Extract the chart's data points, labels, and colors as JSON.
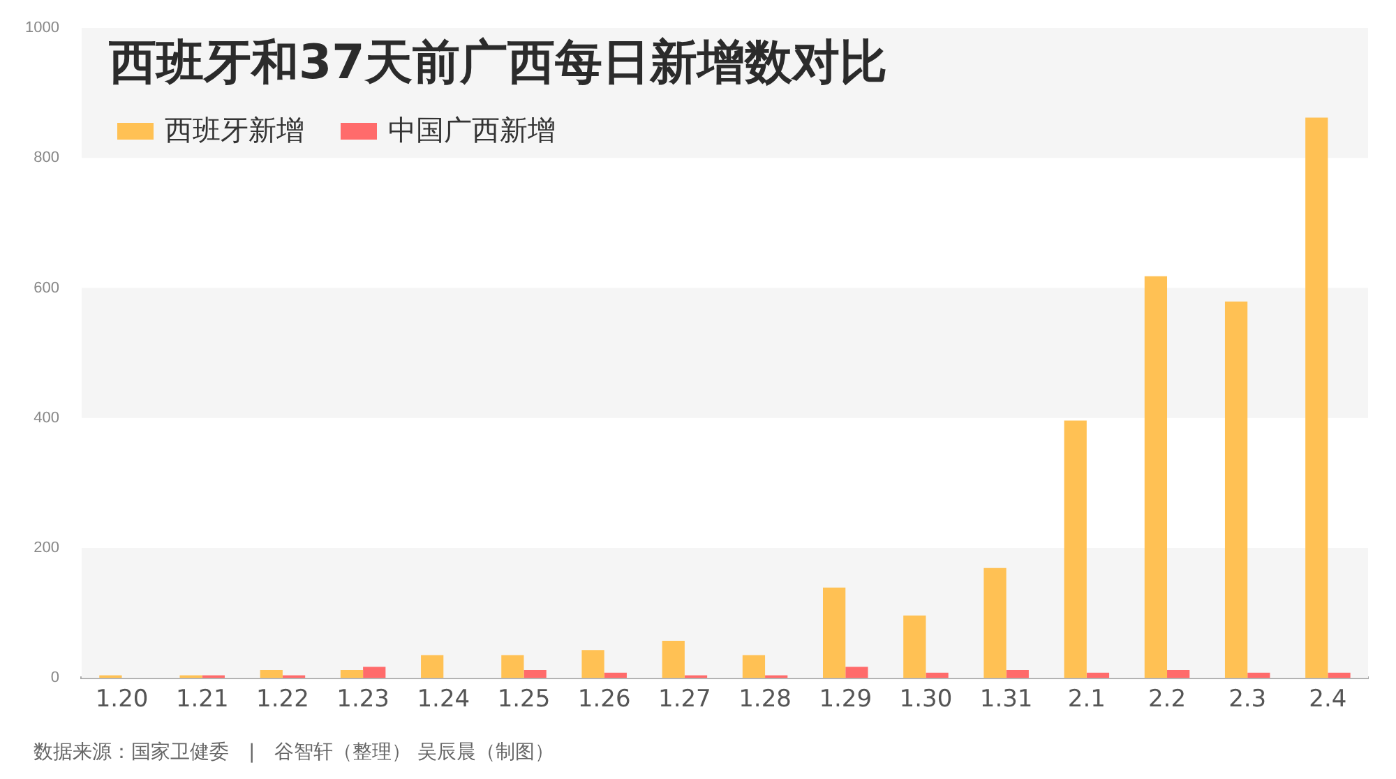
{
  "chart_data": {
    "type": "bar",
    "title": "西班牙和37天前广西每日新增数对比",
    "categories": [
      "1.20",
      "1.21",
      "1.22",
      "1.23",
      "1.24",
      "1.25",
      "1.26",
      "1.27",
      "1.28",
      "1.29",
      "1.30",
      "1.31",
      "2.1",
      "2.2",
      "2.3",
      "2.4"
    ],
    "series": [
      {
        "name": "西班牙新增",
        "color": "#ffc154",
        "values": [
          4,
          4,
          12,
          12,
          35,
          35,
          43,
          57,
          35,
          139,
          96,
          169,
          396,
          618,
          579,
          862
        ]
      },
      {
        "name": "中国广西新增",
        "color": "#ff6b6b",
        "values": [
          0,
          4,
          4,
          17,
          0,
          12,
          8,
          4,
          4,
          17,
          8,
          12,
          8,
          12,
          8,
          8
        ]
      }
    ],
    "ylim": [
      0,
      1000
    ],
    "yticks": [
      0,
      200,
      400,
      600,
      800,
      1000
    ],
    "bands": [
      {
        "axis": "y",
        "from": 0,
        "to": 200,
        "color": "#f5f5f5"
      },
      {
        "axis": "y",
        "from": 400,
        "to": 600,
        "color": "#f5f5f5"
      },
      {
        "axis": "y",
        "from": 800,
        "to": 1000,
        "color": "#f5f5f5"
      }
    ],
    "legend": "top left",
    "annotations": [
      "数据来源：国家卫健委　|　谷智轩（整理） 吴辰晨（制图）"
    ]
  }
}
